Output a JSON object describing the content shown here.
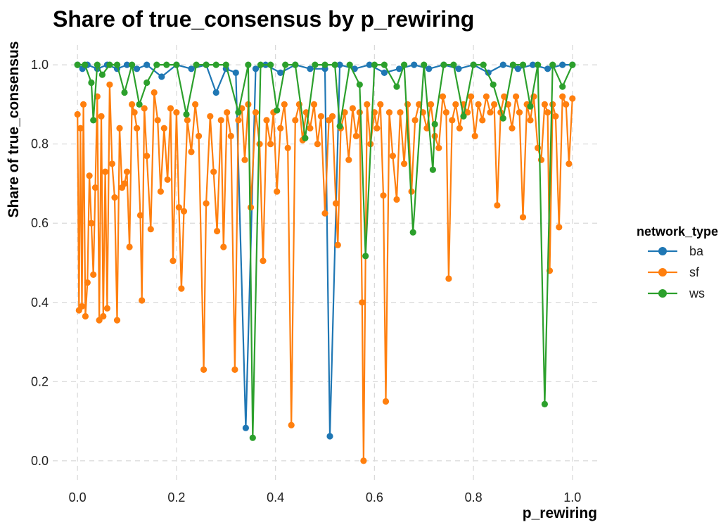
{
  "chart_data": {
    "type": "line",
    "title": "Share of true_consensus by p_rewiring",
    "xlabel": "p_rewiring",
    "ylabel": "Share of true_consensus",
    "xlim": [
      -0.05,
      1.05
    ],
    "ylim": [
      -0.05,
      1.05
    ],
    "xticks": [
      "0.0",
      "0.2",
      "0.4",
      "0.6",
      "0.8",
      "1.0"
    ],
    "yticks": [
      "0.0",
      "0.2",
      "0.4",
      "0.6",
      "0.8",
      "1.0"
    ],
    "grid": true,
    "legend": {
      "title": "network_type",
      "placement": "right"
    },
    "series": [
      {
        "name": "ba",
        "color": "#1f77b4",
        "points": [
          [
            0.0,
            1.0
          ],
          [
            0.01,
            0.99
          ],
          [
            0.02,
            1.0
          ],
          [
            0.04,
            0.99
          ],
          [
            0.06,
            1.0
          ],
          [
            0.08,
            0.99
          ],
          [
            0.1,
            1.0
          ],
          [
            0.12,
            0.99
          ],
          [
            0.14,
            1.0
          ],
          [
            0.17,
            0.97
          ],
          [
            0.2,
            1.0
          ],
          [
            0.23,
            0.99
          ],
          [
            0.26,
            1.0
          ],
          [
            0.28,
            0.93
          ],
          [
            0.3,
            0.99
          ],
          [
            0.32,
            0.98
          ],
          [
            0.34,
            0.083
          ],
          [
            0.36,
            0.99
          ],
          [
            0.38,
            1.0
          ],
          [
            0.41,
            0.98
          ],
          [
            0.44,
            1.0
          ],
          [
            0.47,
            0.99
          ],
          [
            0.5,
            0.99
          ],
          [
            0.51,
            0.062
          ],
          [
            0.53,
            1.0
          ],
          [
            0.56,
            0.99
          ],
          [
            0.59,
            1.0
          ],
          [
            0.62,
            0.98
          ],
          [
            0.65,
            0.99
          ],
          [
            0.68,
            1.0
          ],
          [
            0.71,
            0.99
          ],
          [
            0.74,
            1.0
          ],
          [
            0.77,
            0.99
          ],
          [
            0.8,
            1.0
          ],
          [
            0.83,
            0.98
          ],
          [
            0.86,
            1.0
          ],
          [
            0.89,
            0.99
          ],
          [
            0.92,
            1.0
          ],
          [
            0.95,
            0.99
          ],
          [
            0.98,
            1.0
          ],
          [
            1.0,
            1.0
          ]
        ]
      },
      {
        "name": "sf",
        "color": "#ff7f0e",
        "points": [
          [
            0.0,
            0.875
          ],
          [
            0.003,
            0.38
          ],
          [
            0.006,
            0.84
          ],
          [
            0.009,
            0.39
          ],
          [
            0.012,
            0.9
          ],
          [
            0.016,
            0.365
          ],
          [
            0.02,
            0.45
          ],
          [
            0.024,
            0.72
          ],
          [
            0.028,
            0.6
          ],
          [
            0.032,
            0.47
          ],
          [
            0.036,
            0.69
          ],
          [
            0.04,
            0.92
          ],
          [
            0.044,
            0.355
          ],
          [
            0.048,
            0.87
          ],
          [
            0.052,
            0.365
          ],
          [
            0.056,
            0.73
          ],
          [
            0.06,
            0.385
          ],
          [
            0.065,
            0.95
          ],
          [
            0.07,
            0.75
          ],
          [
            0.075,
            0.665
          ],
          [
            0.08,
            0.355
          ],
          [
            0.085,
            0.84
          ],
          [
            0.09,
            0.69
          ],
          [
            0.095,
            0.7
          ],
          [
            0.1,
            0.73
          ],
          [
            0.105,
            0.54
          ],
          [
            0.11,
            0.9
          ],
          [
            0.115,
            0.88
          ],
          [
            0.12,
            0.84
          ],
          [
            0.127,
            0.62
          ],
          [
            0.13,
            0.405
          ],
          [
            0.135,
            0.89
          ],
          [
            0.14,
            0.77
          ],
          [
            0.148,
            0.585
          ],
          [
            0.155,
            0.93
          ],
          [
            0.162,
            0.86
          ],
          [
            0.168,
            0.68
          ],
          [
            0.175,
            0.84
          ],
          [
            0.182,
            0.71
          ],
          [
            0.188,
            0.89
          ],
          [
            0.193,
            0.505
          ],
          [
            0.2,
            0.88
          ],
          [
            0.205,
            0.64
          ],
          [
            0.21,
            0.435
          ],
          [
            0.215,
            0.63
          ],
          [
            0.222,
            0.86
          ],
          [
            0.23,
            0.78
          ],
          [
            0.238,
            0.9
          ],
          [
            0.245,
            0.82
          ],
          [
            0.255,
            0.23
          ],
          [
            0.26,
            0.65
          ],
          [
            0.268,
            0.87
          ],
          [
            0.275,
            0.73
          ],
          [
            0.282,
            0.58
          ],
          [
            0.29,
            0.86
          ],
          [
            0.295,
            0.54
          ],
          [
            0.302,
            0.88
          ],
          [
            0.31,
            0.82
          ],
          [
            0.318,
            0.23
          ],
          [
            0.325,
            0.86
          ],
          [
            0.332,
            0.89
          ],
          [
            0.338,
            0.76
          ],
          [
            0.345,
            0.9
          ],
          [
            0.35,
            0.64
          ],
          [
            0.36,
            0.88
          ],
          [
            0.368,
            0.8
          ],
          [
            0.375,
            0.505
          ],
          [
            0.382,
            0.86
          ],
          [
            0.39,
            0.8
          ],
          [
            0.396,
            0.88
          ],
          [
            0.403,
            0.68
          ],
          [
            0.41,
            0.84
          ],
          [
            0.418,
            0.9
          ],
          [
            0.425,
            0.79
          ],
          [
            0.432,
            0.09
          ],
          [
            0.44,
            0.86
          ],
          [
            0.448,
            0.9
          ],
          [
            0.455,
            0.81
          ],
          [
            0.462,
            0.88
          ],
          [
            0.47,
            0.84
          ],
          [
            0.478,
            0.9
          ],
          [
            0.485,
            0.8
          ],
          [
            0.492,
            0.87
          ],
          [
            0.5,
            0.625
          ],
          [
            0.508,
            0.86
          ],
          [
            0.515,
            0.87
          ],
          [
            0.522,
            0.65
          ],
          [
            0.526,
            0.545
          ],
          [
            0.532,
            0.84
          ],
          [
            0.54,
            0.88
          ],
          [
            0.548,
            0.76
          ],
          [
            0.556,
            0.89
          ],
          [
            0.563,
            0.82
          ],
          [
            0.57,
            0.88
          ],
          [
            0.575,
            0.4
          ],
          [
            0.578,
            0.0
          ],
          [
            0.585,
            0.9
          ],
          [
            0.592,
            0.8
          ],
          [
            0.6,
            0.88
          ],
          [
            0.605,
            0.84
          ],
          [
            0.612,
            0.9
          ],
          [
            0.618,
            0.67
          ],
          [
            0.623,
            0.15
          ],
          [
            0.63,
            0.88
          ],
          [
            0.637,
            0.77
          ],
          [
            0.645,
            0.66
          ],
          [
            0.652,
            0.88
          ],
          [
            0.66,
            0.75
          ],
          [
            0.667,
            0.9
          ],
          [
            0.675,
            0.68
          ],
          [
            0.682,
            0.86
          ],
          [
            0.69,
            0.9
          ],
          [
            0.698,
            0.88
          ],
          [
            0.706,
            0.84
          ],
          [
            0.714,
            0.9
          ],
          [
            0.722,
            0.82
          ],
          [
            0.73,
            0.79
          ],
          [
            0.738,
            0.92
          ],
          [
            0.745,
            0.88
          ],
          [
            0.75,
            0.46
          ],
          [
            0.757,
            0.86
          ],
          [
            0.764,
            0.9
          ],
          [
            0.772,
            0.84
          ],
          [
            0.78,
            0.9
          ],
          [
            0.788,
            0.88
          ],
          [
            0.795,
            0.92
          ],
          [
            0.803,
            0.82
          ],
          [
            0.81,
            0.9
          ],
          [
            0.818,
            0.86
          ],
          [
            0.826,
            0.92
          ],
          [
            0.834,
            0.88
          ],
          [
            0.842,
            0.9
          ],
          [
            0.848,
            0.645
          ],
          [
            0.855,
            0.88
          ],
          [
            0.862,
            0.92
          ],
          [
            0.87,
            0.9
          ],
          [
            0.878,
            0.84
          ],
          [
            0.886,
            0.92
          ],
          [
            0.893,
            0.88
          ],
          [
            0.9,
            0.615
          ],
          [
            0.908,
            0.9
          ],
          [
            0.915,
            0.86
          ],
          [
            0.922,
            0.92
          ],
          [
            0.93,
            0.79
          ],
          [
            0.937,
            0.76
          ],
          [
            0.944,
            0.9
          ],
          [
            0.95,
            0.88
          ],
          [
            0.954,
            0.48
          ],
          [
            0.96,
            0.9
          ],
          [
            0.966,
            0.87
          ],
          [
            0.973,
            0.59
          ],
          [
            0.98,
            0.92
          ],
          [
            0.987,
            0.9
          ],
          [
            0.993,
            0.75
          ],
          [
            1.0,
            0.915
          ]
        ]
      },
      {
        "name": "ws",
        "color": "#2ca02c",
        "points": [
          [
            0.0,
            1.0
          ],
          [
            0.015,
            1.0
          ],
          [
            0.028,
            0.955
          ],
          [
            0.032,
            0.86
          ],
          [
            0.04,
            1.0
          ],
          [
            0.05,
            0.975
          ],
          [
            0.065,
            1.0
          ],
          [
            0.08,
            1.0
          ],
          [
            0.095,
            0.93
          ],
          [
            0.11,
            1.0
          ],
          [
            0.125,
            0.9
          ],
          [
            0.14,
            0.955
          ],
          [
            0.16,
            1.0
          ],
          [
            0.18,
            1.0
          ],
          [
            0.2,
            1.0
          ],
          [
            0.22,
            0.875
          ],
          [
            0.24,
            1.0
          ],
          [
            0.26,
            1.0
          ],
          [
            0.28,
            1.0
          ],
          [
            0.3,
            1.0
          ],
          [
            0.325,
            0.88
          ],
          [
            0.345,
            1.0
          ],
          [
            0.354,
            0.058
          ],
          [
            0.37,
            1.0
          ],
          [
            0.39,
            1.0
          ],
          [
            0.403,
            0.885
          ],
          [
            0.42,
            1.0
          ],
          [
            0.44,
            1.0
          ],
          [
            0.46,
            0.815
          ],
          [
            0.48,
            1.0
          ],
          [
            0.5,
            1.0
          ],
          [
            0.52,
            1.0
          ],
          [
            0.53,
            0.845
          ],
          [
            0.55,
            1.0
          ],
          [
            0.57,
            0.95
          ],
          [
            0.582,
            0.517
          ],
          [
            0.6,
            1.0
          ],
          [
            0.62,
            1.0
          ],
          [
            0.645,
            0.945
          ],
          [
            0.66,
            1.0
          ],
          [
            0.678,
            0.577
          ],
          [
            0.7,
            1.0
          ],
          [
            0.718,
            0.735
          ],
          [
            0.722,
            0.85
          ],
          [
            0.74,
            1.0
          ],
          [
            0.76,
            1.0
          ],
          [
            0.78,
            0.87
          ],
          [
            0.8,
            1.0
          ],
          [
            0.82,
            1.0
          ],
          [
            0.84,
            0.95
          ],
          [
            0.86,
            0.865
          ],
          [
            0.88,
            1.0
          ],
          [
            0.9,
            1.0
          ],
          [
            0.915,
            0.895
          ],
          [
            0.93,
            1.0
          ],
          [
            0.944,
            0.143
          ],
          [
            0.96,
            1.0
          ],
          [
            0.98,
            0.945
          ],
          [
            1.0,
            1.0
          ]
        ]
      }
    ]
  }
}
